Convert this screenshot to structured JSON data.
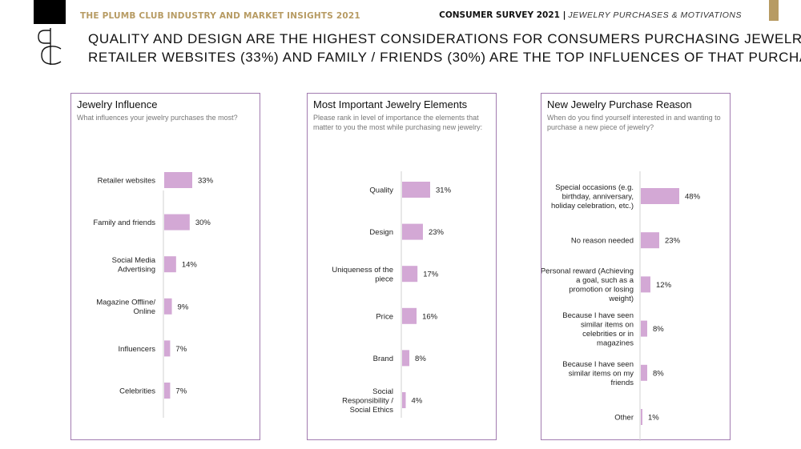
{
  "header": {
    "left": "THE PLUMB CLUB INDUSTRY AND MARKET INSIGHTS 2021",
    "right_bold": "CONSUMER SURVEY 2021 |",
    "right_thin": "JEWELRY PURCHASES & MOTIVATIONS"
  },
  "headline": {
    "line1": "QUALITY AND DESIGN ARE THE HIGHEST CONSIDERATIONS FOR CONSUMERS PURCHASING JEWELRY.",
    "line2": "RETAILER WEBSITES (33%) AND FAMILY / FRIENDS (30%) ARE THE TOP INFLUENCES OF THAT PURCHASE."
  },
  "colors": {
    "bar": "#d3a8d5",
    "border": "#a27bb0",
    "gold": "#b79b63"
  },
  "chart_data": [
    {
      "type": "bar",
      "orientation": "horizontal",
      "title": "Jewelry Influence",
      "subtitle": "What influences your jewelry purchases the most?",
      "categories": [
        "Retailer websites",
        "Family and friends",
        "Social Media Advertising",
        "Magazine Offline/ Online",
        "Influencers",
        "Celebrities"
      ],
      "values": [
        33,
        30,
        14,
        9,
        7,
        7
      ],
      "value_suffix": "%"
    },
    {
      "type": "bar",
      "orientation": "horizontal",
      "title": "Most Important Jewelry Elements",
      "subtitle": "Please rank in level of importance the elements that matter to you the most while purchasing new jewelry:",
      "categories": [
        "Quality",
        "Design",
        "Uniqueness of the piece",
        "Price",
        "Brand",
        "Social Responsibility / Social Ethics"
      ],
      "values": [
        31,
        23,
        17,
        16,
        8,
        4
      ],
      "value_suffix": "%"
    },
    {
      "type": "bar",
      "orientation": "horizontal",
      "title": "New Jewelry Purchase Reason",
      "subtitle": "When do you find yourself interested in and wanting to purchase a new piece of jewelry?",
      "categories": [
        "Special occasions (e.g. birthday, anniversary, holiday celebration, etc.)",
        "No reason needed",
        "Personal reward (Achieving a goal, such as a promotion or losing weight)",
        "Because I have seen similar items on celebrities or in magazines",
        "Because I have seen similar items on my friends",
        "Other"
      ],
      "values": [
        48,
        23,
        12,
        8,
        8,
        1
      ],
      "value_suffix": "%"
    }
  ]
}
